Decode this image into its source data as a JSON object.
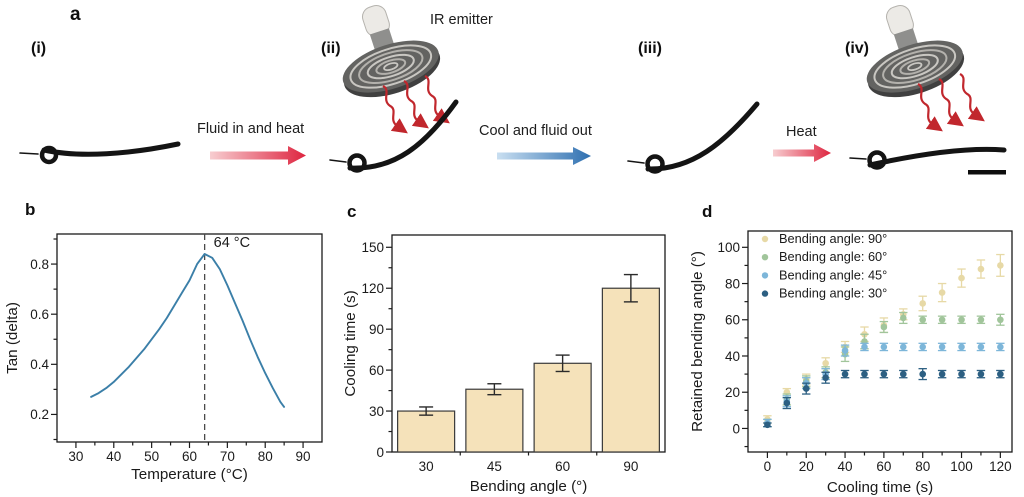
{
  "figure": {
    "panels": {
      "a": {
        "label": "a",
        "steps": [
          "(i)",
          "(ii)",
          "(iii)",
          "(iv)"
        ],
        "ir_emitter_label": "IR emitter",
        "arrow_labels": {
          "fluid_in": "Fluid in and heat",
          "cool_out": "Cool and fluid out",
          "heat": "Heat"
        },
        "arrow_colors": {
          "heat_start": "#f7cdd0",
          "heat_end": "#de2540",
          "cool_start": "#c9dff1",
          "cool_end": "#2e6fb0"
        },
        "wavy_arrow_color": "#c1272d"
      },
      "b": {
        "label": "b"
      },
      "c": {
        "label": "c"
      },
      "d": {
        "label": "d"
      }
    }
  },
  "chart_data": [
    {
      "id": "b",
      "type": "line",
      "xlabel": "Temperature (°C)",
      "ylabel": "Tan (delta)",
      "xlim": [
        25,
        95
      ],
      "ylim": [
        0.09,
        0.92
      ],
      "xticks": [
        30,
        40,
        50,
        60,
        70,
        80,
        90
      ],
      "yticks": [
        0.2,
        0.4,
        0.6,
        0.8
      ],
      "line_color": "#3b7fa8",
      "annotation": {
        "x": 64,
        "text": "64 °C"
      },
      "x": [
        34,
        36,
        38,
        40,
        42,
        44,
        46,
        48,
        50,
        52,
        54,
        56,
        58,
        60,
        62,
        64,
        66,
        68,
        70,
        72,
        74,
        76,
        78,
        80,
        82,
        84,
        85
      ],
      "y": [
        0.27,
        0.285,
        0.305,
        0.33,
        0.36,
        0.39,
        0.425,
        0.46,
        0.5,
        0.54,
        0.585,
        0.635,
        0.685,
        0.735,
        0.8,
        0.84,
        0.825,
        0.78,
        0.715,
        0.645,
        0.575,
        0.5,
        0.43,
        0.365,
        0.305,
        0.25,
        0.23
      ]
    },
    {
      "id": "c",
      "type": "bar",
      "xlabel": "Bending angle (°)",
      "ylabel": "Cooling time (s)",
      "categories": [
        "30",
        "45",
        "60",
        "90"
      ],
      "values": [
        30,
        46,
        65,
        120
      ],
      "errors": [
        3,
        4,
        6,
        10
      ],
      "ylim": [
        0,
        159
      ],
      "yticks": [
        0,
        30,
        60,
        90,
        120,
        150
      ],
      "bar_color": "#f5e2ba",
      "bar_border": "#3a3a3a",
      "error_color": "#2b2b2b"
    },
    {
      "id": "d",
      "type": "scatter",
      "xlabel": "Cooling time (s)",
      "ylabel": "Retained bending angle (°)",
      "xlim": [
        -10,
        126
      ],
      "ylim": [
        -13,
        109
      ],
      "xticks": [
        0,
        20,
        40,
        60,
        80,
        100,
        120
      ],
      "yticks": [
        0,
        20,
        40,
        60,
        80,
        100
      ],
      "legend_position": "top-left",
      "x": [
        0,
        10,
        20,
        30,
        40,
        50,
        60,
        70,
        80,
        90,
        100,
        110,
        120
      ],
      "series": [
        {
          "name": "Bending angle: 90°",
          "color": "#e7d9a6",
          "values": [
            5,
            20,
            27,
            36,
            45,
            52,
            57,
            63,
            69,
            75,
            83,
            88,
            90
          ],
          "errors": [
            2,
            2,
            3,
            3,
            3,
            4,
            4,
            3,
            4,
            5,
            5,
            5,
            6
          ]
        },
        {
          "name": "Bending angle: 60°",
          "color": "#a1c59b",
          "values": [
            3,
            16,
            26,
            31,
            41,
            48,
            56,
            61,
            60,
            60,
            60,
            60,
            60
          ],
          "errors": [
            2,
            3,
            3,
            3,
            4,
            4,
            3,
            3,
            2,
            2,
            2,
            2,
            3
          ]
        },
        {
          "name": "Bending angle: 45°",
          "color": "#7db6d9",
          "values": [
            3,
            15,
            25,
            30,
            43,
            45,
            45,
            45,
            45,
            45,
            45,
            45,
            45
          ],
          "errors": [
            2,
            3,
            3,
            3,
            3,
            2,
            2,
            2,
            2,
            2,
            2,
            2,
            2
          ]
        },
        {
          "name": "Bending angle: 30°",
          "color": "#2c5f82",
          "values": [
            2,
            14,
            22,
            28,
            30,
            30,
            30,
            30,
            30,
            30,
            30,
            30,
            30
          ],
          "errors": [
            1,
            3,
            3,
            3,
            2,
            2,
            2,
            2,
            3,
            2,
            2,
            2,
            2
          ]
        }
      ]
    }
  ]
}
